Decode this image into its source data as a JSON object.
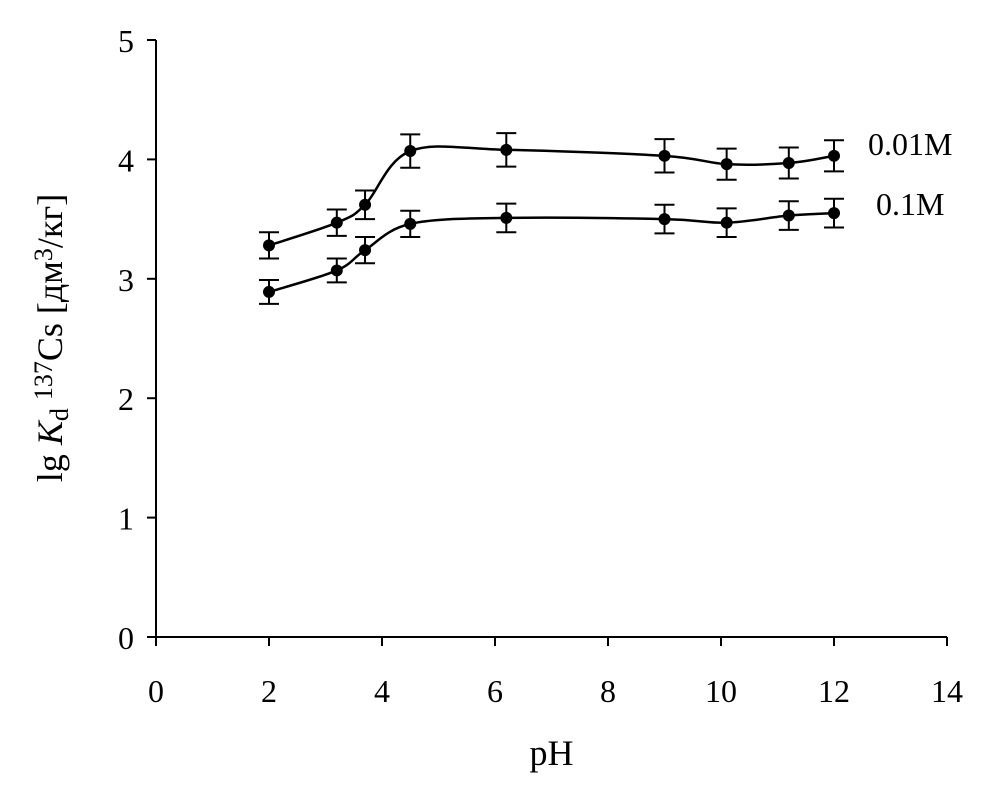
{
  "chart_data": {
    "type": "line",
    "xlabel": "pH",
    "ylabel": {
      "prefix": "lg ",
      "k": "K",
      "sub": "d",
      "iso": "137",
      "cs": "Cs [дм",
      "cube": "3",
      "unit": "/кг]"
    },
    "xlim": [
      0,
      14
    ],
    "ylim": [
      0,
      5
    ],
    "xticks": [
      "0",
      "2",
      "4",
      "6",
      "8",
      "10",
      "12",
      "14"
    ],
    "yticks": [
      "0",
      "1",
      "2",
      "3",
      "4",
      "5"
    ],
    "grid": false,
    "series": [
      {
        "name": "0.01M",
        "x": [
          2,
          3.2,
          3.7,
          4.5,
          6.2,
          9,
          10.1,
          11.2,
          12
        ],
        "y": [
          3.28,
          3.47,
          3.62,
          4.07,
          4.08,
          4.03,
          3.96,
          3.97,
          4.03
        ],
        "err": [
          0.11,
          0.11,
          0.12,
          0.14,
          0.14,
          0.14,
          0.13,
          0.13,
          0.13
        ]
      },
      {
        "name": "0.1M",
        "x": [
          2,
          3.2,
          3.7,
          4.5,
          6.2,
          9,
          10.1,
          11.2,
          12
        ],
        "y": [
          2.89,
          3.07,
          3.24,
          3.46,
          3.51,
          3.5,
          3.47,
          3.53,
          3.55
        ],
        "err": [
          0.1,
          0.1,
          0.11,
          0.11,
          0.12,
          0.12,
          0.12,
          0.12,
          0.12
        ]
      }
    ]
  }
}
